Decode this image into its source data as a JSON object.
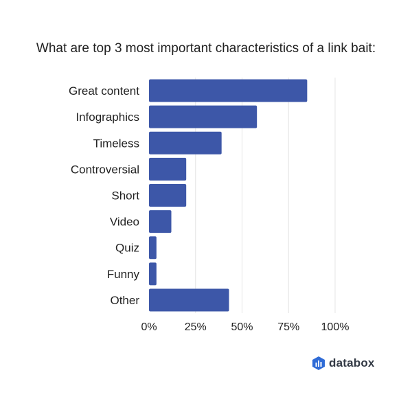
{
  "chart_data": {
    "type": "bar",
    "orientation": "horizontal",
    "title": "What are top 3 most important characteristics of a link bait:",
    "categories": [
      "Great content",
      "Infographics",
      "Timeless",
      "Controversial",
      "Short",
      "Video",
      "Quiz",
      "Funny",
      "Other"
    ],
    "values": [
      85,
      58,
      39,
      20,
      20,
      12,
      4,
      4,
      43
    ],
    "unit": "%",
    "xlim": [
      0,
      100
    ],
    "xticks": [
      "0%",
      "25%",
      "50%",
      "75%",
      "100%"
    ],
    "grid": true,
    "bar_color": "#3d57a8"
  },
  "branding": {
    "logo_text": "databox"
  }
}
